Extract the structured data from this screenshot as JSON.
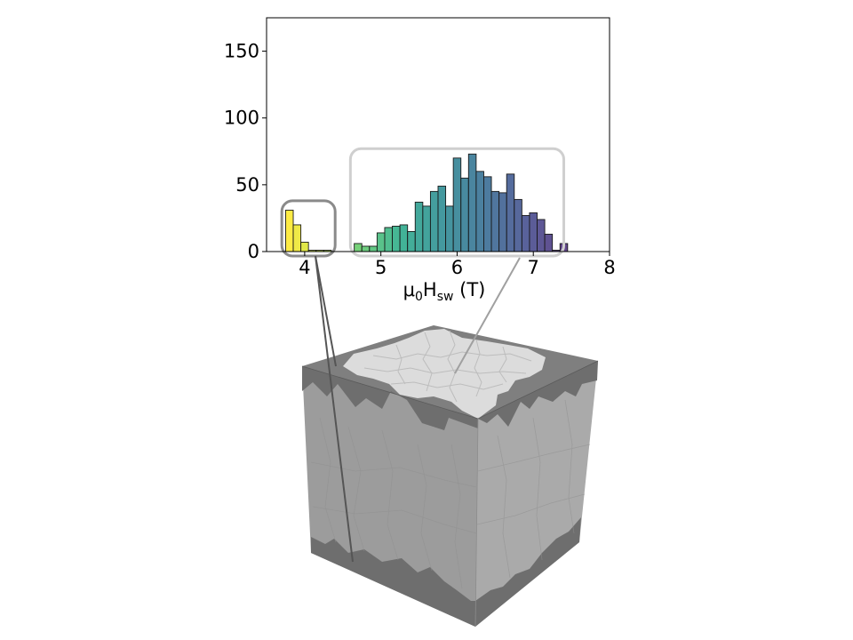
{
  "chart_data": {
    "type": "bar",
    "title": "",
    "xlabel": {
      "base": "μ",
      "sub1": "0",
      "mid": "H",
      "sub2": "sw",
      "unit": " (T)"
    },
    "ylabel": "",
    "xlim": [
      3.5,
      8
    ],
    "ylim": [
      0,
      175
    ],
    "xticks": [
      "4",
      "5",
      "6",
      "7",
      "8"
    ],
    "yticks": [
      "0",
      "50",
      "100",
      "150"
    ],
    "grid": false,
    "colormap": "viridis (reversed)",
    "bin_width": 0.1,
    "bins": [
      {
        "x": 3.8,
        "count": 31
      },
      {
        "x": 3.9,
        "count": 20
      },
      {
        "x": 4.0,
        "count": 7
      },
      {
        "x": 4.1,
        "count": 1
      },
      {
        "x": 4.2,
        "count": 1
      },
      {
        "x": 4.3,
        "count": 1
      },
      {
        "x": 4.7,
        "count": 6
      },
      {
        "x": 4.8,
        "count": 4
      },
      {
        "x": 4.9,
        "count": 4
      },
      {
        "x": 5.0,
        "count": 14
      },
      {
        "x": 5.1,
        "count": 18
      },
      {
        "x": 5.2,
        "count": 19
      },
      {
        "x": 5.3,
        "count": 20
      },
      {
        "x": 5.4,
        "count": 15
      },
      {
        "x": 5.5,
        "count": 37
      },
      {
        "x": 5.6,
        "count": 34
      },
      {
        "x": 5.7,
        "count": 45
      },
      {
        "x": 5.8,
        "count": 49
      },
      {
        "x": 5.9,
        "count": 34
      },
      {
        "x": 6.0,
        "count": 70
      },
      {
        "x": 6.1,
        "count": 55
      },
      {
        "x": 6.2,
        "count": 73
      },
      {
        "x": 6.3,
        "count": 60
      },
      {
        "x": 6.4,
        "count": 56
      },
      {
        "x": 6.5,
        "count": 45
      },
      {
        "x": 6.6,
        "count": 44
      },
      {
        "x": 6.7,
        "count": 58
      },
      {
        "x": 6.8,
        "count": 39
      },
      {
        "x": 6.9,
        "count": 27
      },
      {
        "x": 7.0,
        "count": 29
      },
      {
        "x": 7.1,
        "count": 24
      },
      {
        "x": 7.2,
        "count": 13
      },
      {
        "x": 7.3,
        "count": 1
      },
      {
        "x": 7.4,
        "count": 6
      }
    ]
  },
  "callouts": [
    {
      "name": "low-field-grains-box",
      "x_range": [
        3.7,
        4.4
      ],
      "y_range": [
        0,
        38
      ],
      "color": "#8a8a8a"
    },
    {
      "name": "high-field-grains-box",
      "x_range": [
        4.6,
        7.4
      ],
      "y_range": [
        0,
        77
      ],
      "color": "#cfcfcf"
    }
  ],
  "illustration": {
    "description": "3D cube of polycrystalline grain microstructure",
    "top_color": "#7d7d7d",
    "grain_color": "#dcdcdc",
    "left_face_color": "#9a9a9a",
    "right_face_color": "#a9a9a9",
    "edge_shell_color": "#6b6b6b"
  }
}
